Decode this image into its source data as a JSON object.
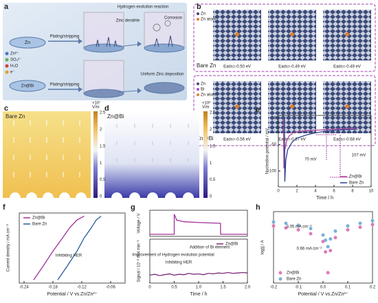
{
  "figure": {
    "panel_labels": [
      "a",
      "b",
      "c",
      "d",
      "e",
      "f",
      "g",
      "h"
    ],
    "a": {
      "texts": [
        "Zn",
        "Plating/stripping",
        "Hydrogen evolution reaction",
        "Zinc dendrite",
        "Corrosion",
        "Plating/stripping",
        "Uniform Zinc deposition",
        "Zn@Bi"
      ],
      "legend": [
        "Zn²⁺",
        "SO₄²⁻",
        "H₂O",
        "e⁻"
      ]
    },
    "b": {
      "top": {
        "label": "Bare Zn",
        "legend": [
          "Zn",
          "Zn atom"
        ],
        "energies": [
          "Eads=-0.50 eV",
          "Eads=-0.49 eV",
          "Eads=-0.49 eV"
        ]
      },
      "bottom": {
        "label": "Zn@Bi",
        "legend": [
          "Zn",
          "Bi",
          "Zn atom"
        ],
        "energies": [
          "Eads=-0.56 eV",
          "Eads=-0.67 eV",
          "Eads=-0.68 eV"
        ]
      }
    },
    "c": {
      "label": "Bare Zn",
      "unit": "V/m",
      "exponent": "×10⁷",
      "colorbar_ticks": [
        "2.5",
        "2",
        "1.5",
        "1",
        "0.5",
        "0"
      ]
    },
    "d": {
      "label": "Zn@Bi",
      "unit": "V/m",
      "exponent": "×10⁶",
      "colorbar_ticks": [
        "2.5",
        "2",
        "1.5",
        "1",
        "0.5",
        "0"
      ]
    }
  },
  "chart_data": [
    {
      "type": "line",
      "xlabel": "Time / h",
      "ylabel": "Nucleation potential / mV",
      "xlim": [
        0,
        10
      ],
      "ylim": [
        -130,
        5
      ],
      "xticks": [
        0,
        2,
        4,
        6,
        8,
        10
      ],
      "yticks": [
        0,
        -50,
        -100
      ],
      "legend": "lower right",
      "series": [
        {
          "name": "Zn@Bi",
          "color": "#b0449c",
          "x": [
            0,
            0.55,
            0.6,
            0.7,
            0.9,
            1.2,
            1.6,
            2,
            3,
            4,
            5,
            6,
            7,
            8.5
          ],
          "values": [
            0,
            0,
            -95,
            -60,
            -42,
            -33,
            -28,
            -26,
            -24,
            -23,
            -22,
            -21,
            -20,
            -19
          ]
        },
        {
          "name": "Bare Zn",
          "color": "#2c3e8c",
          "x": [
            0,
            0.65,
            0.7,
            0.8,
            1,
            1.5,
            2,
            3,
            4,
            5,
            6,
            7,
            8.5
          ],
          "values": [
            0,
            0,
            -120,
            -80,
            -60,
            -45,
            -38,
            -32,
            -28,
            -25,
            -23,
            -22,
            -21
          ]
        }
      ],
      "annotations": [
        "70 mV",
        "107 mV"
      ]
    },
    {
      "type": "line",
      "xlabel": "Potential / V vs.Zn/Zn²⁺",
      "ylabel": "Current density / mA cm⁻²",
      "xlim": [
        -0.25,
        -0.03
      ],
      "ylim": [
        -1.05,
        0.05
      ],
      "xticks": [
        -0.24,
        -0.18,
        -0.12,
        -0.06
      ],
      "legend": "upper left",
      "series": [
        {
          "name": "Zn@Bi",
          "color": "#a0309a",
          "x": [
            -0.22,
            -0.2,
            -0.18,
            -0.16,
            -0.145,
            -0.13,
            -0.115
          ],
          "values": [
            -1,
            -0.78,
            -0.55,
            -0.34,
            -0.18,
            -0.06,
            0
          ]
        },
        {
          "name": "Bare Zn",
          "color": "#2a5a9a",
          "x": [
            -0.17,
            -0.15,
            -0.13,
            -0.115,
            -0.1,
            -0.09,
            -0.08
          ],
          "values": [
            -1,
            -0.78,
            -0.55,
            -0.34,
            -0.18,
            -0.06,
            0
          ]
        }
      ],
      "annotations": [
        "Inhibiting HER"
      ]
    },
    {
      "type": "line",
      "ylabel": "Voltage / V",
      "xlim": [
        0,
        2
      ],
      "ylim": [
        0,
        1
      ],
      "series": [
        {
          "color": "#a0309a",
          "x": [
            0,
            0.5,
            0.5,
            0.55,
            0.7,
            1,
            1.45,
            1.45,
            2
          ],
          "values": [
            0.08,
            0.08,
            0.85,
            0.62,
            0.56,
            0.53,
            0.5,
            0.08,
            0.08
          ]
        }
      ],
      "annotations": []
    },
    {
      "type": "line",
      "xlabel": "Time / h",
      "ylabel": "Signal / 10⁻² mol min⁻¹",
      "xlim": [
        0,
        2
      ],
      "ylim": [
        0,
        1
      ],
      "xticks": [
        0,
        0.5,
        {
          "value": 1,
          "label": "1.0"
        },
        1.5,
        {
          "value": 2,
          "label": "2.0"
        }
      ],
      "legend": "upper right",
      "series": [
        {
          "name": "Zn@Bi",
          "color": "#7a2a7a",
          "x": [
            0,
            0.1,
            0.2,
            0.3,
            0.4,
            0.5,
            0.6,
            0.7,
            0.8,
            0.9,
            1,
            1.1,
            1.2,
            1.3,
            1.4,
            1.5,
            1.6,
            1.7,
            1.8,
            1.9,
            2
          ],
          "values": [
            0.18,
            0.2,
            0.17,
            0.19,
            0.21,
            0.18,
            0.2,
            0.19,
            0.22,
            0.2,
            0.21,
            0.19,
            0.22,
            0.21,
            0.23,
            0.22,
            0.24,
            0.22,
            0.23,
            0.24,
            0.23
          ]
        }
      ],
      "annotations": [
        "Addition of Bi element",
        "Improvement of Hydrogen evolution potential",
        "Inhibiting HER"
      ]
    },
    {
      "type": "scatter",
      "xlabel": "Potential / V vs.Zn/Zn²⁺",
      "ylabel": "log|j| / A",
      "xlim": [
        -0.2,
        0.2
      ],
      "ylim": [
        -7,
        -1.5
      ],
      "xticks": [
        -0.2,
        -0.1,
        {
          "value": 0,
          "label": "0.0"
        },
        0.1,
        0.2
      ],
      "legend": "lower left",
      "series": [
        {
          "name": "Zn@Bi",
          "color": "#e07ab8",
          "x": [
            -0.2,
            -0.15,
            -0.1,
            -0.05,
            0,
            0.01,
            0.02,
            0.03,
            0.05,
            0.1,
            0.15,
            0.2
          ],
          "values": [
            -2.6,
            -2.75,
            -2.9,
            -3.2,
            -3.8,
            -4.6,
            -6.2,
            -4.5,
            -3.5,
            -2.9,
            -2.7,
            -2.5
          ]
        },
        {
          "name": "Bare Zn",
          "color": "#7ab0d8",
          "x": [
            -0.2,
            -0.15,
            -0.1,
            -0.05,
            0,
            0.01,
            0.02,
            0.03,
            0.05,
            0.1,
            0.15,
            0.2
          ],
          "values": [
            -2.3,
            -2.4,
            -2.55,
            -2.8,
            -3.3,
            -3.7,
            -4.2,
            -3.6,
            -3.0,
            -2.6,
            -2.4,
            -2.2
          ]
        }
      ],
      "annotations": [
        "3.05 mA cm⁻²",
        "0.66 mA cm⁻²"
      ]
    }
  ]
}
